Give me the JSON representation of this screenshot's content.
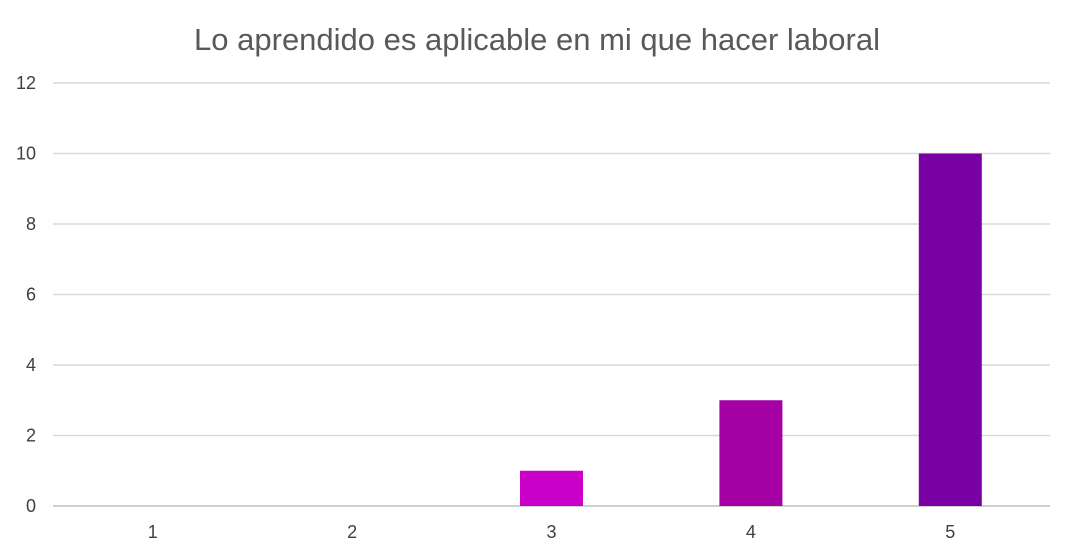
{
  "chart_data": {
    "type": "bar",
    "title": "Lo aprendido es aplicable en mi que hacer laboral",
    "categories": [
      "1",
      "2",
      "3",
      "4",
      "5"
    ],
    "values": [
      0,
      0,
      1,
      3,
      10
    ],
    "colors": [
      "#c800c8",
      "#c800c8",
      "#c800c8",
      "#a400a4",
      "#7b00a4"
    ],
    "ylim": [
      0,
      12
    ],
    "yticks": [
      "0",
      "2",
      "4",
      "6",
      "8",
      "10",
      "12"
    ],
    "xlabel": "",
    "ylabel": "",
    "grid": true,
    "legend": "none"
  }
}
